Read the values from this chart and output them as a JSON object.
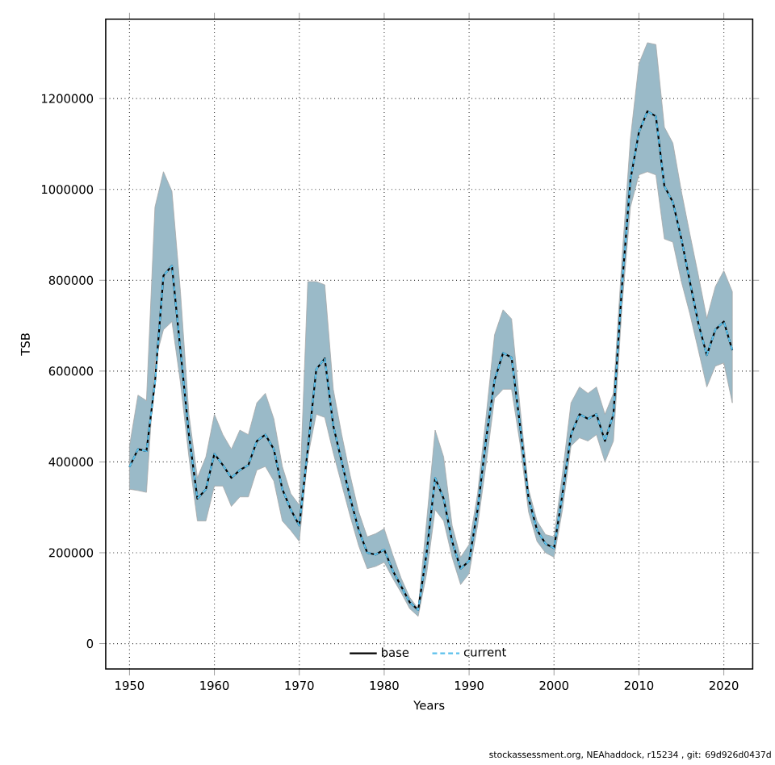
{
  "chart_data": {
    "type": "line",
    "xlabel": "Years",
    "ylabel": "TSB",
    "annotations": [
      "stockassessment.org, NEAhaddock, r15234 , git: 69d926d0437d"
    ],
    "x": [
      1950,
      1951,
      1952,
      1953,
      1954,
      1955,
      1956,
      1957,
      1958,
      1959,
      1960,
      1961,
      1962,
      1963,
      1964,
      1965,
      1966,
      1967,
      1968,
      1969,
      1970,
      1971,
      1972,
      1973,
      1974,
      1975,
      1976,
      1977,
      1978,
      1979,
      1980,
      1981,
      1982,
      1983,
      1984,
      1985,
      1986,
      1987,
      1988,
      1989,
      1990,
      1991,
      1992,
      1993,
      1994,
      1995,
      1996,
      1997,
      1998,
      1999,
      2000,
      2001,
      2002,
      2003,
      2004,
      2005,
      2006,
      2007,
      2008,
      2009,
      2010,
      2011,
      2012,
      2013,
      2014,
      2015,
      2016,
      2017,
      2018,
      2019,
      2020,
      2021
    ],
    "series": [
      {
        "name": "base",
        "color": "#000000",
        "line_style": "solid",
        "values": [
          389000,
          428000,
          424000,
          575000,
          810000,
          832000,
          646000,
          460000,
          319000,
          340000,
          418000,
          393000,
          365000,
          382000,
          393000,
          446000,
          460000,
          428000,
          340000,
          295000,
          260000,
          428000,
          604000,
          628000,
          480000,
          400000,
          320000,
          250000,
          200000,
          196000,
          207000,
          161000,
          126000,
          91000,
          74000,
          200000,
          365000,
          319000,
          225000,
          165000,
          182000,
          295000,
          450000,
          580000,
          640000,
          630000,
          480000,
          320000,
          250000,
          220000,
          210000,
          330000,
          460000,
          505000,
          495000,
          505000,
          446000,
          505000,
          786000,
          1021000,
          1126000,
          1172000,
          1161000,
          1007000,
          972000,
          891000,
          797000,
          705000,
          635000,
          691000,
          709000,
          646000
        ]
      },
      {
        "name": "current",
        "color": "#5bc0eb",
        "line_style": "dashed",
        "values": [
          389000,
          428000,
          424000,
          575000,
          810000,
          832000,
          646000,
          460000,
          319000,
          340000,
          418000,
          393000,
          365000,
          382000,
          393000,
          446000,
          460000,
          428000,
          340000,
          295000,
          260000,
          428000,
          604000,
          628000,
          480000,
          400000,
          320000,
          250000,
          200000,
          196000,
          207000,
          161000,
          126000,
          91000,
          74000,
          200000,
          365000,
          319000,
          225000,
          165000,
          182000,
          295000,
          450000,
          580000,
          640000,
          630000,
          480000,
          320000,
          250000,
          220000,
          210000,
          330000,
          460000,
          505000,
          495000,
          505000,
          446000,
          505000,
          786000,
          1021000,
          1126000,
          1172000,
          1161000,
          1007000,
          972000,
          891000,
          797000,
          705000,
          635000,
          691000,
          709000,
          646000
        ],
        "upper": [
          435000,
          547000,
          535000,
          961000,
          1039000,
          996000,
          775000,
          505000,
          365000,
          411000,
          505000,
          460000,
          428000,
          470000,
          460000,
          530000,
          551000,
          495000,
          390000,
          330000,
          305000,
          797000,
          797000,
          790000,
          560000,
          460000,
          370000,
          290000,
          235000,
          242000,
          253000,
          196000,
          144000,
          102000,
          77000,
          270000,
          470000,
          411000,
          260000,
          190000,
          218000,
          330000,
          500000,
          680000,
          735000,
          715000,
          520000,
          340000,
          270000,
          240000,
          235000,
          375000,
          530000,
          565000,
          551000,
          565000,
          505000,
          551000,
          846000,
          1112000,
          1277000,
          1323000,
          1319000,
          1137000,
          1102000,
          996000,
          902000,
          811000,
          716000,
          786000,
          821000,
          775000
        ],
        "lower": [
          340000,
          337000,
          333000,
          621000,
          691000,
          709000,
          575000,
          411000,
          270000,
          270000,
          347000,
          347000,
          302000,
          323000,
          323000,
          382000,
          390000,
          358000,
          270000,
          249000,
          225000,
          411000,
          505000,
          498000,
          420000,
          350000,
          280000,
          215000,
          165000,
          170000,
          179000,
          144000,
          112000,
          77000,
          60000,
          154000,
          295000,
          270000,
          190000,
          130000,
          154000,
          260000,
          395000,
          540000,
          560000,
          560000,
          440000,
          290000,
          225000,
          200000,
          190000,
          295000,
          435000,
          453000,
          446000,
          460000,
          400000,
          446000,
          740000,
          961000,
          1032000,
          1039000,
          1032000,
          891000,
          884000,
          797000,
          726000,
          646000,
          565000,
          611000,
          618000,
          530000
        ]
      }
    ],
    "xlim": [
      1947.2,
      2023.4
    ],
    "ylim": [
      -56000,
      1375000
    ],
    "xticks": [
      1950,
      1960,
      1970,
      1980,
      1990,
      2000,
      2010,
      2020
    ],
    "yticks": [
      0,
      200000,
      400000,
      600000,
      800000,
      1000000,
      1200000
    ],
    "grid": true,
    "legend": "bottom",
    "marker": "none"
  }
}
